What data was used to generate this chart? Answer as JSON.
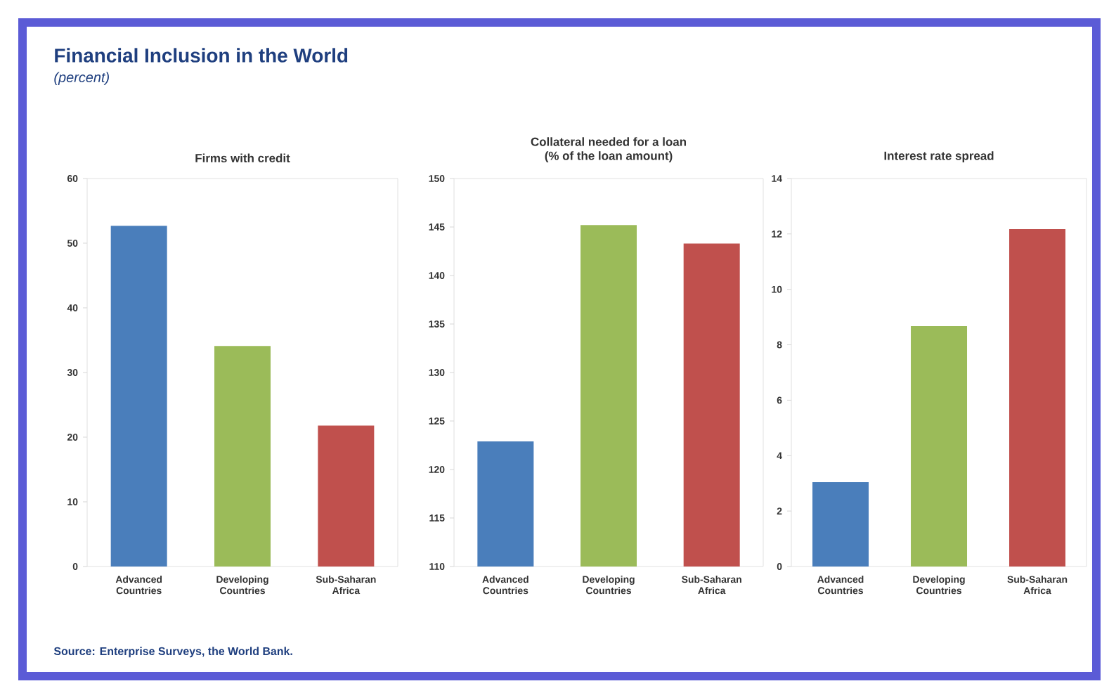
{
  "chart_data": [
    {
      "type": "other",
      "title": "Financial Inclusion in the World",
      "subtitle": "(percent)",
      "annotations": [
        "Source: Enterprise Surveys, the World Bank."
      ]
    },
    {
      "type": "bar",
      "title": "Firms with credit",
      "categories": [
        "Advanced Countries",
        "Developing Countries",
        "Sub-Saharan Africa"
      ],
      "values": [
        52.7,
        34.1,
        21.8
      ],
      "colors": [
        "#4a7ebb",
        "#9bbb59",
        "#c0504d"
      ],
      "ylim": [
        0,
        60
      ],
      "yticks": [
        0,
        10,
        20,
        30,
        40,
        50,
        60
      ]
    },
    {
      "type": "bar",
      "title": "Collateral needed for a loan",
      "subtitle": "(% of the loan amount)",
      "categories": [
        "Advanced Countries",
        "Developing Countries",
        "Sub-Saharan Africa"
      ],
      "values": [
        122.9,
        145.2,
        143.3
      ],
      "colors": [
        "#4a7ebb",
        "#9bbb59",
        "#c0504d"
      ],
      "ylim": [
        110,
        150
      ],
      "yticks": [
        110,
        115,
        120,
        125,
        130,
        135,
        140,
        145,
        150
      ]
    },
    {
      "type": "bar",
      "title": "Interest rate spread",
      "categories": [
        "Advanced Countries",
        "Developing Countries",
        "Sub-Saharan Africa"
      ],
      "values": [
        3.04,
        8.67,
        12.17
      ],
      "colors": [
        "#4a7ebb",
        "#9bbb59",
        "#c0504d"
      ],
      "ylim": [
        0,
        14
      ],
      "yticks": [
        0,
        2,
        4,
        6,
        8,
        10,
        12,
        14
      ]
    }
  ]
}
